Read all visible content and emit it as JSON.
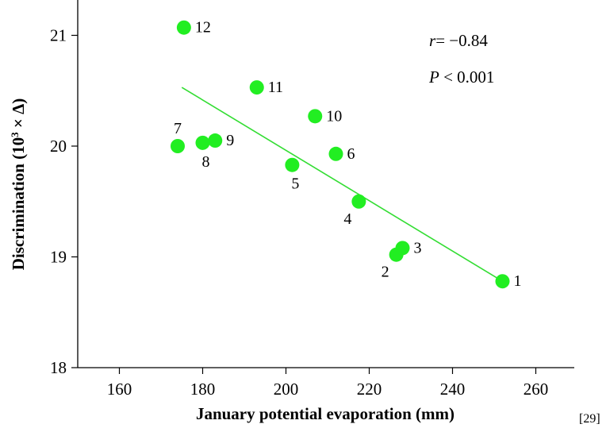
{
  "chart_data": {
    "type": "scatter",
    "title": "",
    "xlabel": "January potential evaporation (mm)",
    "ylabel_main": "Discrimination (10",
    "ylabel_sup": "3",
    "ylabel_tail": " × Δ)",
    "xlim": [
      150,
      275
    ],
    "ylim": [
      18,
      21.3
    ],
    "xticks": [
      160,
      180,
      200,
      220,
      240,
      260
    ],
    "yticks": [
      18,
      19,
      20,
      21
    ],
    "grid": false,
    "legend": "none",
    "point_color": "#22ee22",
    "line_color": "#33dd33",
    "points": [
      {
        "label": "1",
        "x": 252,
        "y": 18.78,
        "label_pos": "right"
      },
      {
        "label": "2",
        "x": 226.5,
        "y": 19.02,
        "label_pos": "below-left"
      },
      {
        "label": "3",
        "x": 228,
        "y": 19.08,
        "label_pos": "right"
      },
      {
        "label": "4",
        "x": 217.5,
        "y": 19.5,
        "label_pos": "below-left"
      },
      {
        "label": "5",
        "x": 201.5,
        "y": 19.83,
        "label_pos": "below"
      },
      {
        "label": "6",
        "x": 212,
        "y": 19.93,
        "label_pos": "right"
      },
      {
        "label": "7",
        "x": 174,
        "y": 20.0,
        "label_pos": "above"
      },
      {
        "label": "8",
        "x": 180,
        "y": 20.03,
        "label_pos": "below"
      },
      {
        "label": "9",
        "x": 183,
        "y": 20.05,
        "label_pos": "right"
      },
      {
        "label": "10",
        "x": 207,
        "y": 20.27,
        "label_pos": "right"
      },
      {
        "label": "11",
        "x": 193,
        "y": 20.53,
        "label_pos": "right"
      },
      {
        "label": "12",
        "x": 175.5,
        "y": 21.07,
        "label_pos": "right"
      }
    ],
    "trendline": {
      "x": [
        175,
        252
      ],
      "y": [
        20.53,
        18.78
      ]
    },
    "annotations": {
      "r_label": "r",
      "r_value": "= −0.84",
      "p_label": "P",
      "p_value": " < 0.001"
    }
  },
  "reference": "[29]"
}
